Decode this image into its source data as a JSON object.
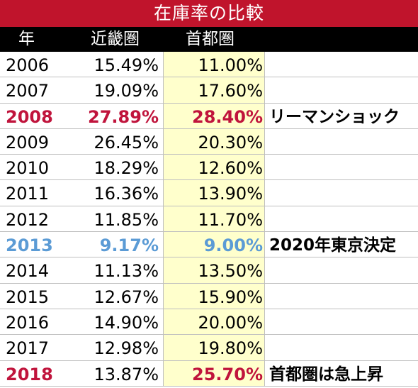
{
  "title": "在庫率の比較",
  "headers": {
    "year": "年",
    "kinki": "近畿圏",
    "shuto": "首都圏"
  },
  "colors": {
    "title_bg": "#c0142c",
    "header_bg": "#000000",
    "highlight_column_bg": "#ffffcc",
    "emphasis_red": "#c0143c",
    "emphasis_blue": "#5b9bd5"
  },
  "rows": [
    {
      "year": "2006",
      "kinki": "15.49%",
      "shuto": "11.00%",
      "note": ""
    },
    {
      "year": "2007",
      "kinki": "19.09%",
      "shuto": "17.60%",
      "note": ""
    },
    {
      "year": "2008",
      "kinki": "27.89%",
      "shuto": "28.40%",
      "note": "リーマンショック"
    },
    {
      "year": "2009",
      "kinki": "26.45%",
      "shuto": "20.30%",
      "note": ""
    },
    {
      "year": "2010",
      "kinki": "18.29%",
      "shuto": "12.60%",
      "note": ""
    },
    {
      "year": "2011",
      "kinki": "16.36%",
      "shuto": "13.90%",
      "note": ""
    },
    {
      "year": "2012",
      "kinki": "11.85%",
      "shuto": "11.70%",
      "note": ""
    },
    {
      "year": "2013",
      "kinki": "9.17%",
      "shuto": "9.00%",
      "note": "2020年東京決定"
    },
    {
      "year": "2014",
      "kinki": "11.13%",
      "shuto": "13.50%",
      "note": ""
    },
    {
      "year": "2015",
      "kinki": "12.67%",
      "shuto": "15.90%",
      "note": ""
    },
    {
      "year": "2016",
      "kinki": "14.90%",
      "shuto": "20.00%",
      "note": ""
    },
    {
      "year": "2017",
      "kinki": "12.98%",
      "shuto": "19.80%",
      "note": ""
    },
    {
      "year": "2018",
      "kinki": "13.87%",
      "shuto": "25.70%",
      "note": "首都圏は急上昇"
    }
  ]
}
